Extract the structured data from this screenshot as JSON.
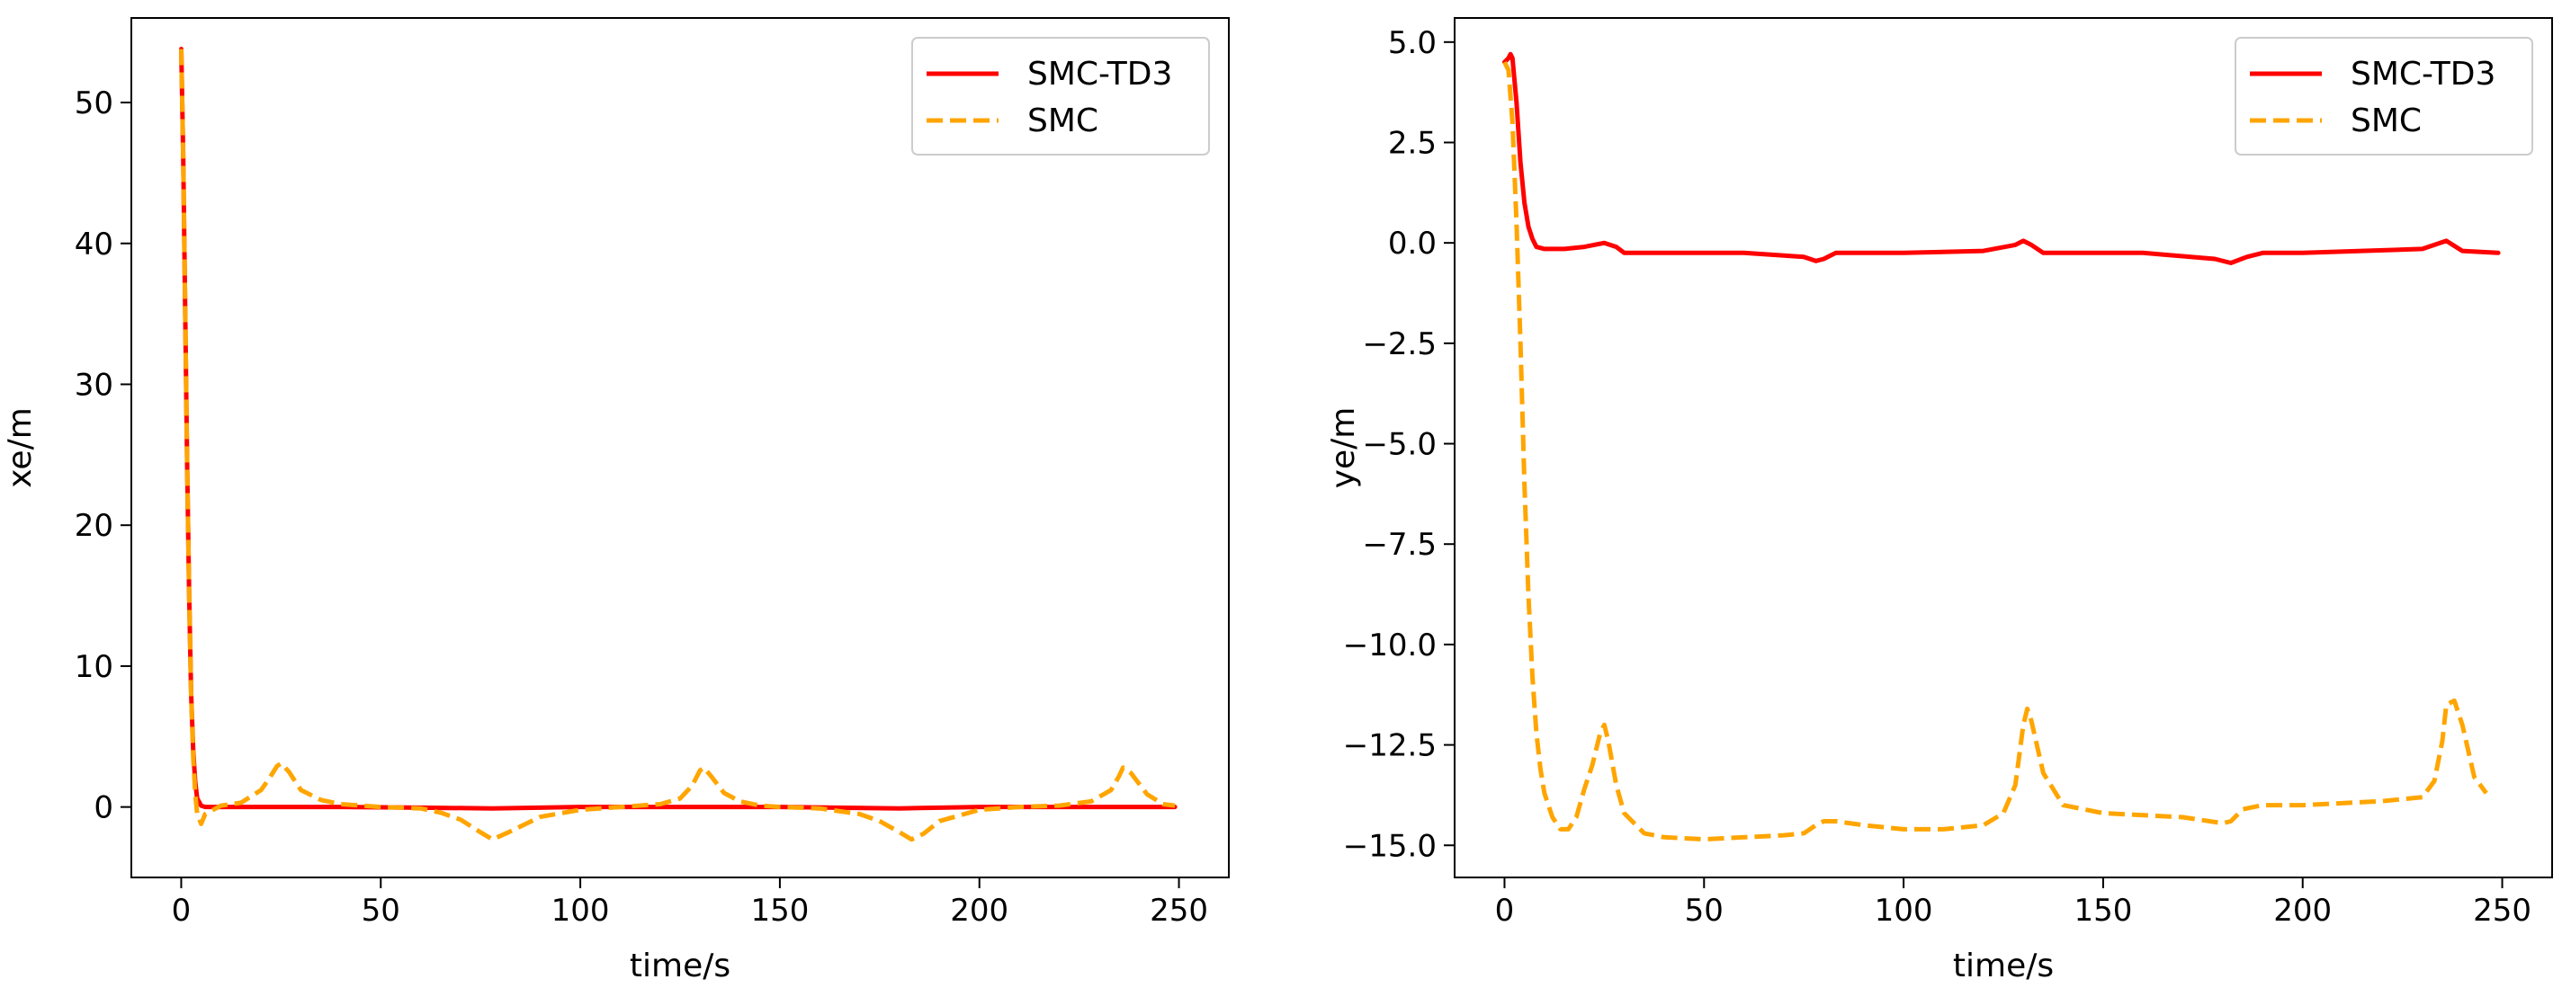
{
  "colors": {
    "smc_td3": "#ff0000",
    "smc": "#ffa500",
    "axes": "#000000",
    "legend_border": "#cccccc"
  },
  "chart_data": [
    {
      "type": "line",
      "title": "",
      "xlabel": "time/s",
      "ylabel": "xe/m",
      "xlim": [
        -12.5,
        262.5
      ],
      "ylim": [
        -5,
        56
      ],
      "xticks": [
        0,
        50,
        100,
        150,
        200,
        250
      ],
      "xtick_labels": [
        "0",
        "50",
        "100",
        "150",
        "200",
        "250"
      ],
      "yticks": [
        0,
        10,
        20,
        30,
        40,
        50
      ],
      "ytick_labels": [
        "0",
        "10",
        "20",
        "30",
        "40",
        "50"
      ],
      "legend": {
        "location": "top-right",
        "entries": [
          "SMC-TD3",
          "SMC"
        ]
      },
      "series": [
        {
          "name": "SMC-TD3",
          "style": "solid",
          "color": "#ff0000",
          "x": [
            0,
            0.5,
            1,
            1.5,
            2,
            2.5,
            3,
            3.5,
            4,
            5,
            6,
            8,
            10,
            20,
            40,
            60,
            78,
            100,
            130,
            150,
            180,
            200,
            230,
            249
          ],
          "y": [
            53.8,
            46,
            35,
            24,
            15,
            8,
            4,
            1.8,
            0.6,
            0.1,
            0.0,
            0.0,
            0.0,
            0.0,
            0.0,
            -0.05,
            -0.1,
            0.0,
            0.0,
            0.0,
            -0.1,
            0.0,
            0.0,
            0.0
          ]
        },
        {
          "name": "SMC",
          "style": "dashed",
          "color": "#ffa500",
          "x": [
            0,
            0.5,
            1,
            1.5,
            2,
            2.5,
            3,
            3.5,
            4,
            5,
            6,
            8,
            10,
            15,
            20,
            22,
            24,
            25,
            27,
            30,
            35,
            40,
            50,
            60,
            65,
            70,
            75,
            78,
            82,
            90,
            100,
            110,
            120,
            125,
            128,
            130,
            131,
            133,
            136,
            140,
            145,
            150,
            160,
            170,
            175,
            180,
            183,
            186,
            190,
            200,
            210,
            220,
            228,
            233,
            235,
            236,
            238,
            242,
            246,
            249
          ],
          "y": [
            53.8,
            46,
            35,
            24,
            15,
            8,
            3.5,
            1,
            -0.5,
            -1.2,
            -0.5,
            -0.2,
            0.1,
            0.3,
            1.2,
            2.0,
            2.9,
            3.1,
            2.5,
            1.2,
            0.5,
            0.2,
            0.0,
            -0.1,
            -0.4,
            -0.9,
            -1.8,
            -2.3,
            -1.8,
            -0.7,
            -0.2,
            0.0,
            0.2,
            0.6,
            1.5,
            2.6,
            2.8,
            2.1,
            1.0,
            0.4,
            0.1,
            0.0,
            -0.1,
            -0.5,
            -1.0,
            -1.8,
            -2.3,
            -1.9,
            -1.0,
            -0.2,
            0.0,
            0.1,
            0.4,
            1.2,
            2.2,
            2.8,
            2.4,
            0.9,
            0.2,
            0.1
          ]
        }
      ]
    },
    {
      "type": "line",
      "title": "",
      "xlabel": "time/s",
      "ylabel": "ye/m",
      "xlim": [
        -12.5,
        262.5
      ],
      "ylim": [
        -15.8,
        5.6
      ],
      "xticks": [
        0,
        50,
        100,
        150,
        200,
        250
      ],
      "xtick_labels": [
        "0",
        "50",
        "100",
        "150",
        "200",
        "250"
      ],
      "yticks": [
        5.0,
        2.5,
        0.0,
        -2.5,
        -5.0,
        -7.5,
        -10.0,
        -12.5,
        -15.0
      ],
      "ytick_labels": [
        "5.0",
        "2.5",
        "0.0",
        "−2.5",
        "−5.0",
        "−7.5",
        "−10.0",
        "−12.5",
        "−15.0"
      ],
      "legend": {
        "location": "top-right",
        "entries": [
          "SMC-TD3",
          "SMC"
        ]
      },
      "series": [
        {
          "name": "SMC-TD3",
          "style": "solid",
          "color": "#ff0000",
          "x": [
            0,
            1,
            1.5,
            2,
            3,
            4,
            5,
            6,
            7,
            8,
            10,
            15,
            20,
            25,
            28,
            30,
            40,
            60,
            75,
            78,
            80,
            83,
            90,
            100,
            120,
            128,
            130,
            132,
            135,
            140,
            160,
            178,
            182,
            186,
            190,
            200,
            230,
            236,
            240,
            249
          ],
          "y": [
            4.5,
            4.6,
            4.7,
            4.6,
            3.5,
            2.0,
            1.0,
            0.4,
            0.1,
            -0.1,
            -0.15,
            -0.15,
            -0.1,
            0.0,
            -0.1,
            -0.25,
            -0.25,
            -0.25,
            -0.35,
            -0.45,
            -0.4,
            -0.25,
            -0.25,
            -0.25,
            -0.2,
            -0.05,
            0.05,
            -0.05,
            -0.25,
            -0.25,
            -0.25,
            -0.4,
            -0.5,
            -0.35,
            -0.25,
            -0.25,
            -0.15,
            0.05,
            -0.2,
            -0.25
          ]
        },
        {
          "name": "SMC",
          "style": "dashed",
          "color": "#ffa500",
          "x": [
            0,
            1,
            2,
            3,
            4,
            5,
            6,
            7,
            8,
            9,
            10,
            12,
            14,
            16,
            18,
            20,
            22,
            24,
            25,
            26,
            28,
            30,
            35,
            40,
            50,
            60,
            70,
            75,
            78,
            80,
            83,
            90,
            100,
            110,
            120,
            125,
            128,
            130,
            131,
            132,
            135,
            140,
            150,
            170,
            180,
            182,
            185,
            190,
            200,
            220,
            230,
            233,
            235,
            236,
            238,
            240,
            243,
            246
          ],
          "y": [
            4.5,
            4.3,
            3.0,
            0.5,
            -2.5,
            -6.0,
            -8.8,
            -10.8,
            -12.2,
            -13.1,
            -13.7,
            -14.3,
            -14.6,
            -14.6,
            -14.3,
            -13.6,
            -13.0,
            -12.2,
            -12.0,
            -12.4,
            -13.5,
            -14.2,
            -14.7,
            -14.8,
            -14.85,
            -14.8,
            -14.75,
            -14.7,
            -14.5,
            -14.4,
            -14.4,
            -14.5,
            -14.6,
            -14.6,
            -14.5,
            -14.2,
            -13.5,
            -12.0,
            -11.6,
            -11.9,
            -13.2,
            -14.0,
            -14.2,
            -14.3,
            -14.45,
            -14.4,
            -14.1,
            -14.0,
            -14.0,
            -13.9,
            -13.8,
            -13.4,
            -12.4,
            -11.5,
            -11.4,
            -12.0,
            -13.3,
            -13.7
          ]
        }
      ]
    }
  ]
}
